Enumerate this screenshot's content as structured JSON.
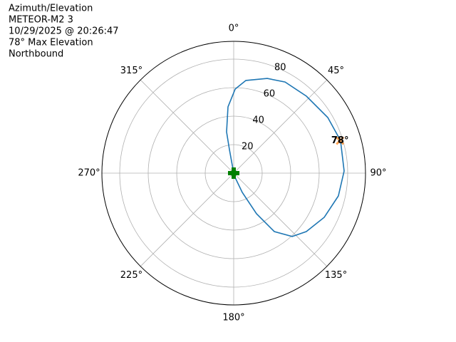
{
  "chart_data": {
    "type": "polar",
    "title_lines": [
      "Azimuth/Elevation",
      "METEOR-M2 3",
      "10/29/2025 @ 20:26:47",
      "78° Max Elevation",
      "Northbound"
    ],
    "rlim": [
      0,
      92.5
    ],
    "rticks": [
      20,
      40,
      60,
      80
    ],
    "thetaticks": [
      {
        "value": 0,
        "label": "0°"
      },
      {
        "value": 45,
        "label": "45°"
      },
      {
        "value": 90,
        "label": "90°"
      },
      {
        "value": 135,
        "label": "135°"
      },
      {
        "value": 180,
        "label": "180°"
      },
      {
        "value": 225,
        "label": "225°"
      },
      {
        "value": 270,
        "label": "270°"
      },
      {
        "value": 315,
        "label": "315°"
      }
    ],
    "grid": true,
    "series": [
      {
        "color": "#1f77b4",
        "theta": [
          0,
          349.7,
          350.2,
          355.1,
          1.0,
          7.5,
          19.5,
          29.4,
          43.4,
          59.4,
          73.0,
          88.9,
          102.3,
          116.0,
          128.8,
          137.3,
          145.2,
          150.7,
          156.0,
          180
        ],
        "r": [
          0,
          16.8,
          29.4,
          46.7,
          59.0,
          65.6,
          70.5,
          73.4,
          74.3,
          76.7,
          78.4,
          77.5,
          75.2,
          70.7,
          65.4,
          60.5,
          49.9,
          32.7,
          14.8,
          1.0
        ]
      }
    ],
    "max_point": {
      "theta": 73,
      "r": 78,
      "label": "78°",
      "color": "#ff7f0e"
    },
    "start_point": {
      "theta": 0,
      "r": 0,
      "color": "#008000"
    }
  }
}
